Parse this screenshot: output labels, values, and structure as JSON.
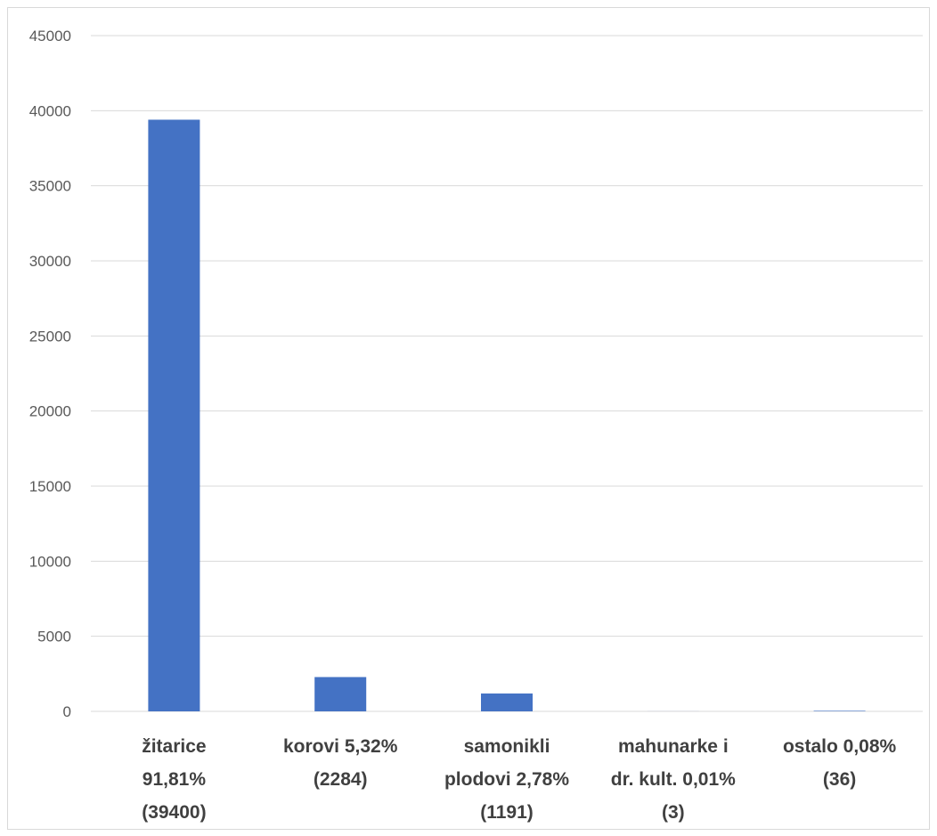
{
  "chart_data": {
    "type": "bar",
    "title": "",
    "xlabel": "",
    "ylabel": "",
    "ylim": [
      0,
      45000
    ],
    "yticks": [
      0,
      5000,
      10000,
      15000,
      20000,
      25000,
      30000,
      35000,
      40000,
      45000
    ],
    "grid": true,
    "legend": "none",
    "bar_color": "#4472C4",
    "categories": [
      [
        "žitarice",
        "91,81%",
        "(39400)"
      ],
      [
        "korovi 5,32%",
        "(2284)"
      ],
      [
        "samonikli",
        "plodovi 2,78%",
        "(1191)"
      ],
      [
        "mahunarke i",
        "dr. kult. 0,01%",
        "(3)"
      ],
      [
        "ostalo 0,08%",
        "(36)"
      ]
    ],
    "values": [
      39400,
      2284,
      1191,
      3,
      36
    ]
  }
}
